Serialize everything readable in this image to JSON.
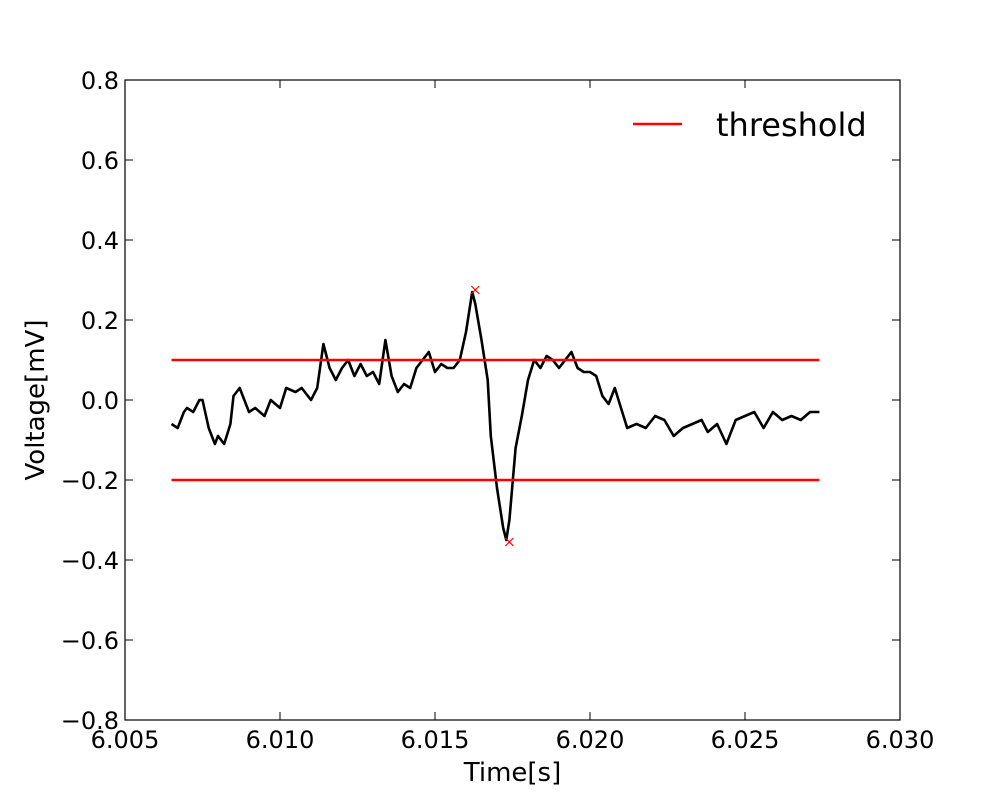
{
  "chart_data": {
    "type": "line",
    "xlabel": "Time[s]",
    "ylabel": "Voltage[mV]",
    "xlim": [
      6.005,
      6.03
    ],
    "ylim": [
      -0.8,
      0.8
    ],
    "x_ticks": [
      6.005,
      6.01,
      6.015,
      6.02,
      6.025,
      6.03
    ],
    "x_tick_labels": [
      "6.005",
      "6.010",
      "6.015",
      "6.020",
      "6.025",
      "6.030"
    ],
    "y_ticks": [
      -0.8,
      -0.6,
      -0.4,
      -0.2,
      0.0,
      0.2,
      0.4,
      0.6,
      0.8
    ],
    "y_tick_labels": [
      "−0.8",
      "−0.6",
      "−0.4",
      "−0.2",
      "0.0",
      "0.2",
      "0.4",
      "0.6",
      "0.8"
    ],
    "grid": false,
    "legend": {
      "placement": "upper right",
      "entries": [
        "threshold"
      ]
    },
    "colors": {
      "signal": "#000000",
      "threshold": "#ff0000",
      "peaks": "#ff0000"
    },
    "series": [
      {
        "name": "",
        "color": "#000000",
        "x": [
          6.0065,
          6.0067,
          6.0069,
          6.007,
          6.0072,
          6.0074,
          6.0075,
          6.0077,
          6.0079,
          6.008,
          6.0082,
          6.0084,
          6.0085,
          6.0087,
          6.009,
          6.0092,
          6.0095,
          6.0097,
          6.01,
          6.0102,
          6.0105,
          6.0107,
          6.011,
          6.0112,
          6.0114,
          6.0116,
          6.0118,
          6.012,
          6.0122,
          6.0124,
          6.0126,
          6.0128,
          6.013,
          6.0132,
          6.0134,
          6.0136,
          6.0138,
          6.014,
          6.0142,
          6.0144,
          6.0146,
          6.0148,
          6.015,
          6.0152,
          6.0154,
          6.0156,
          6.0158,
          6.016,
          6.0162,
          6.0163,
          6.0165,
          6.0167,
          6.0168,
          6.017,
          6.0172,
          6.0173,
          6.0174,
          6.0176,
          6.0178,
          6.018,
          6.0182,
          6.0184,
          6.0186,
          6.0188,
          6.019,
          6.0192,
          6.0194,
          6.0196,
          6.0198,
          6.02,
          6.0202,
          6.0204,
          6.0206,
          6.0208,
          6.021,
          6.0212,
          6.0215,
          6.0218,
          6.0221,
          6.0224,
          6.0227,
          6.023,
          6.0233,
          6.0236,
          6.0238,
          6.0241,
          6.0244,
          6.0247,
          6.025,
          6.0253,
          6.0256,
          6.0259,
          6.0262,
          6.0265,
          6.0268,
          6.0271,
          6.0274
        ],
        "y": [
          -0.06,
          -0.07,
          -0.03,
          -0.02,
          -0.03,
          0.0,
          0.0,
          -0.07,
          -0.11,
          -0.09,
          -0.11,
          -0.06,
          0.01,
          0.03,
          -0.03,
          -0.02,
          -0.04,
          0.0,
          -0.02,
          0.03,
          0.02,
          0.03,
          0.0,
          0.03,
          0.14,
          0.08,
          0.05,
          0.08,
          0.1,
          0.06,
          0.09,
          0.06,
          0.07,
          0.04,
          0.15,
          0.06,
          0.02,
          0.04,
          0.03,
          0.08,
          0.1,
          0.12,
          0.07,
          0.09,
          0.08,
          0.08,
          0.1,
          0.17,
          0.27,
          0.24,
          0.15,
          0.05,
          -0.09,
          -0.22,
          -0.32,
          -0.35,
          -0.3,
          -0.12,
          -0.04,
          0.05,
          0.1,
          0.08,
          0.11,
          0.1,
          0.08,
          0.1,
          0.12,
          0.08,
          0.07,
          0.07,
          0.06,
          0.01,
          -0.01,
          0.03,
          -0.02,
          -0.07,
          -0.06,
          -0.07,
          -0.04,
          -0.05,
          -0.09,
          -0.07,
          -0.06,
          -0.05,
          -0.08,
          -0.06,
          -0.11,
          -0.05,
          -0.04,
          -0.03,
          -0.07,
          -0.03,
          -0.05,
          -0.04,
          -0.05,
          -0.03,
          -0.03
        ]
      },
      {
        "name": "threshold",
        "color": "#ff0000",
        "x": [
          6.0065,
          6.0274
        ],
        "y": [
          0.1,
          0.1
        ]
      },
      {
        "name": "threshold",
        "color": "#ff0000",
        "x": [
          6.0065,
          6.0274
        ],
        "y": [
          -0.2,
          -0.2
        ]
      }
    ],
    "peaks": [
      {
        "x": 6.0163,
        "y": 0.275,
        "marker": "x"
      },
      {
        "x": 6.0174,
        "y": -0.355,
        "marker": "x"
      }
    ]
  }
}
